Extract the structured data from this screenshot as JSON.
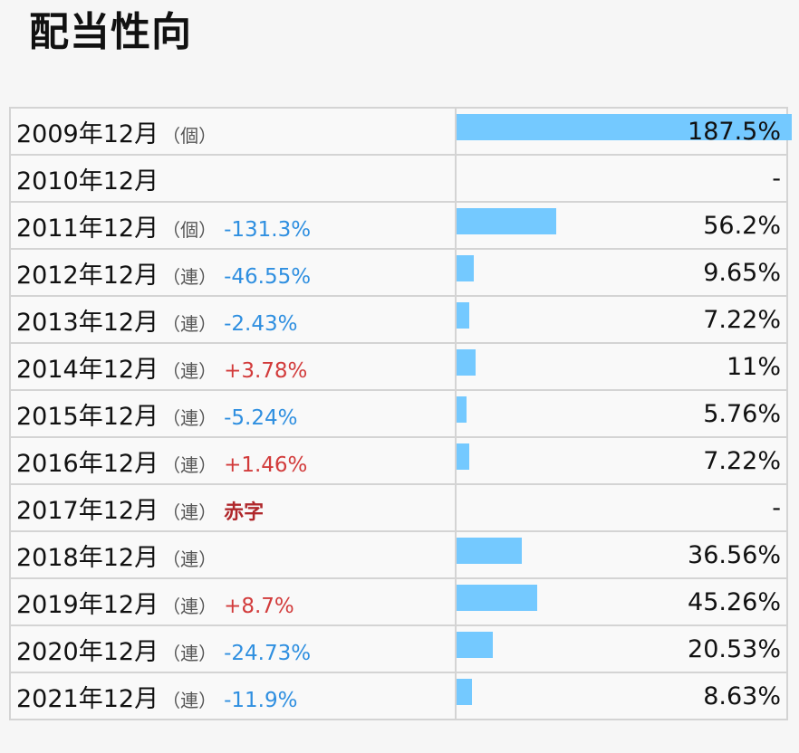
{
  "title": "配当性向",
  "chart_data": {
    "type": "bar",
    "orientation": "horizontal",
    "title": "配当性向",
    "rows": [
      {
        "period": "2009年12月",
        "kind": "（個）",
        "change": "",
        "change_type": "",
        "value": 187.5,
        "label": "187.5%"
      },
      {
        "period": "2010年12月",
        "kind": "",
        "change": "",
        "change_type": "",
        "value": null,
        "label": "-"
      },
      {
        "period": "2011年12月",
        "kind": "（個）",
        "change": "-131.3%",
        "change_type": "neg",
        "value": 56.2,
        "label": "56.2%"
      },
      {
        "period": "2012年12月",
        "kind": "（連）",
        "change": "-46.55%",
        "change_type": "neg",
        "value": 9.65,
        "label": "9.65%"
      },
      {
        "period": "2013年12月",
        "kind": "（連）",
        "change": "-2.43%",
        "change_type": "neg",
        "value": 7.22,
        "label": "7.22%"
      },
      {
        "period": "2014年12月",
        "kind": "（連）",
        "change": "+3.78%",
        "change_type": "pos",
        "value": 11,
        "label": "11%"
      },
      {
        "period": "2015年12月",
        "kind": "（連）",
        "change": "-5.24%",
        "change_type": "neg",
        "value": 5.76,
        "label": "5.76%"
      },
      {
        "period": "2016年12月",
        "kind": "（連）",
        "change": "+1.46%",
        "change_type": "pos",
        "value": 7.22,
        "label": "7.22%"
      },
      {
        "period": "2017年12月",
        "kind": "（連）",
        "change": "赤字",
        "change_type": "loss",
        "value": null,
        "label": "-"
      },
      {
        "period": "2018年12月",
        "kind": "（連）",
        "change": "",
        "change_type": "",
        "value": 36.56,
        "label": "36.56%"
      },
      {
        "period": "2019年12月",
        "kind": "（連）",
        "change": "+8.7%",
        "change_type": "pos",
        "value": 45.26,
        "label": "45.26%"
      },
      {
        "period": "2020年12月",
        "kind": "（連）",
        "change": "-24.73%",
        "change_type": "neg",
        "value": 20.53,
        "label": "20.53%"
      },
      {
        "period": "2021年12月",
        "kind": "（連）",
        "change": "-11.9%",
        "change_type": "neg",
        "value": 8.63,
        "label": "8.63%"
      }
    ],
    "xlim": [
      0,
      187.5
    ],
    "colors": {
      "bar": "#74c9ff",
      "negative_change": "#2f8fe0",
      "positive_change": "#d23b3b",
      "loss_label": "#b0282c"
    }
  }
}
